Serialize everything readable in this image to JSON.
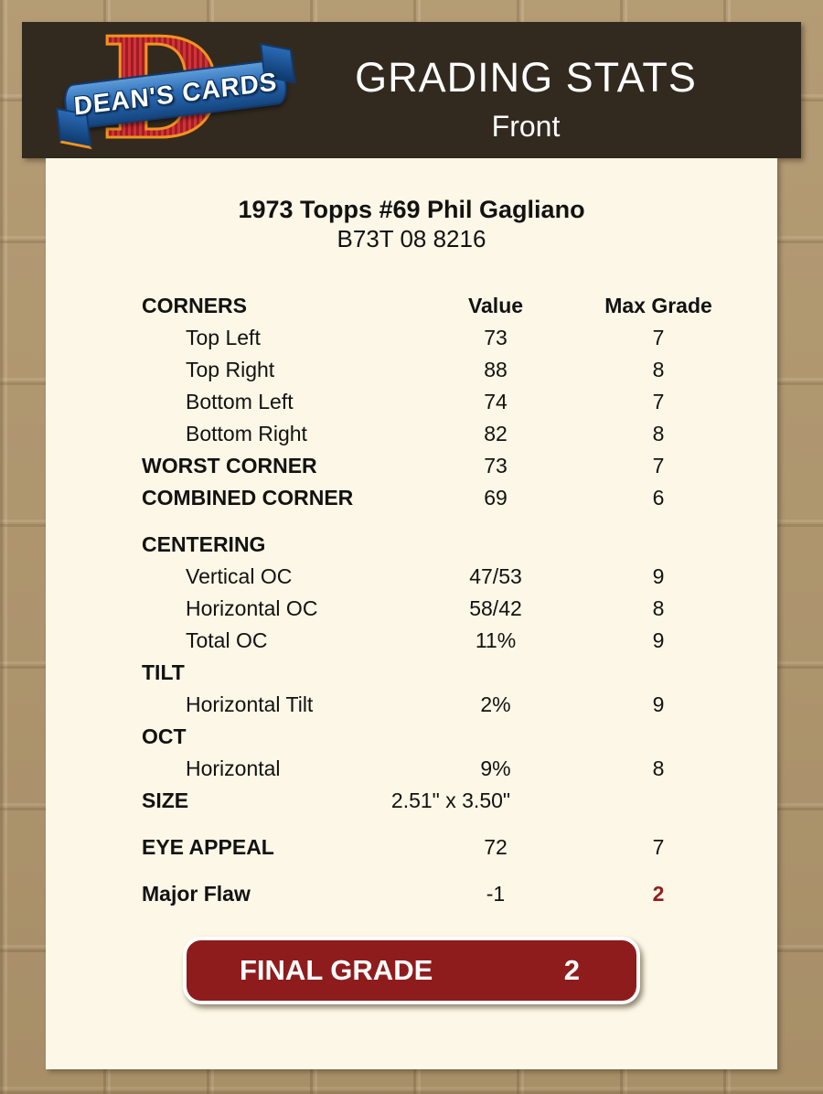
{
  "logo": {
    "monogram": "D",
    "banner_text": "DEAN'S CARDS"
  },
  "header": {
    "title": "GRADING STATS",
    "subtitle": "Front"
  },
  "card": {
    "title": "1973 Topps #69 Phil Gagliano",
    "code": "B73T 08 8216"
  },
  "table": {
    "rows": [
      {
        "label": "CORNERS",
        "value": "Value",
        "max": "Max Grade"
      },
      {
        "label": "Top Left",
        "value": "73",
        "max": "7"
      },
      {
        "label": "Top Right",
        "value": "88",
        "max": "8"
      },
      {
        "label": "Bottom Left",
        "value": "74",
        "max": "7"
      },
      {
        "label": "Bottom Right",
        "value": "82",
        "max": "8"
      },
      {
        "label": "WORST CORNER",
        "value": "73",
        "max": "7"
      },
      {
        "label": "COMBINED CORNER",
        "value": "69",
        "max": "6"
      },
      {
        "label": "CENTERING",
        "value": "",
        "max": ""
      },
      {
        "label": "Vertical OC",
        "value": "47/53",
        "max": "9"
      },
      {
        "label": "Horizontal OC",
        "value": "58/42",
        "max": "8"
      },
      {
        "label": "Total OC",
        "value": "11%",
        "max": "9"
      },
      {
        "label": "TILT",
        "value": "",
        "max": ""
      },
      {
        "label": "Horizontal Tilt",
        "value": "2%",
        "max": "9"
      },
      {
        "label": "OCT",
        "value": "",
        "max": ""
      },
      {
        "label": "Horizontal",
        "value": "9%",
        "max": "8"
      },
      {
        "label": "SIZE",
        "value": "2.51\" x 3.50\"",
        "max": ""
      },
      {
        "label": "EYE APPEAL",
        "value": "72",
        "max": "7"
      },
      {
        "label": "Major Flaw",
        "value": "-1",
        "max": "2"
      }
    ]
  },
  "final": {
    "label": "FINAL GRADE",
    "grade": "2"
  },
  "colors": {
    "background_tan": "#b0976f",
    "header_brown": "#322a1f",
    "panel_cream": "#fcf7e6",
    "button_red": "#8e1c1c",
    "flaw_grade_red": "#8e1f1f",
    "logo_red": "#bf2a2e",
    "logo_orange": "#ef9420",
    "logo_blue": "#2a6ab5"
  }
}
